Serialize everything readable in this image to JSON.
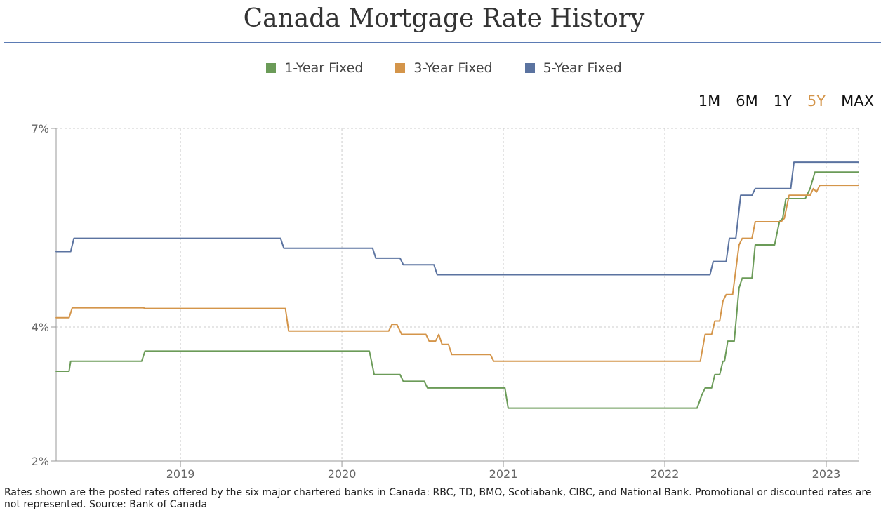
{
  "title": "Canada Mortgage Rate History",
  "range_selector": {
    "options": [
      "1M",
      "6M",
      "1Y",
      "5Y",
      "MAX"
    ],
    "active": "5Y"
  },
  "footnote": "Rates shown are the posted rates offered by the six major chartered banks in Canada: RBC, TD, BMO, Scotiabank, CIBC, and National Bank. Promotional or discounted rates are not represented. Source: Bank of Canada",
  "colors": {
    "one_year": "#6b9b58",
    "three_year": "#d4954a",
    "five_year": "#5b73a0",
    "grid": "#cccccc",
    "axis": "#999999"
  },
  "chart_data": {
    "type": "line",
    "title": "Canada Mortgage Rate History",
    "xlabel": "",
    "ylabel": "",
    "x_range": [
      2018.23,
      2023.2
    ],
    "ylim": [
      2,
      7
    ],
    "y_ticks": [
      2,
      4,
      7
    ],
    "y_tick_labels": [
      "2%",
      "4%",
      "7%"
    ],
    "x_ticks": [
      2019,
      2020,
      2021,
      2022,
      2023
    ],
    "x_tick_labels": [
      "2019",
      "2020",
      "2021",
      "2022",
      "2023"
    ],
    "grid": true,
    "legend": "top-center",
    "series": [
      {
        "name": "1-Year Fixed",
        "color": "#6b9b58",
        "points": [
          [
            2018.23,
            3.34
          ],
          [
            2018.31,
            3.34
          ],
          [
            2018.32,
            3.49
          ],
          [
            2018.76,
            3.49
          ],
          [
            2018.78,
            3.64
          ],
          [
            2020.17,
            3.64
          ],
          [
            2020.2,
            3.29
          ],
          [
            2020.36,
            3.29
          ],
          [
            2020.38,
            3.19
          ],
          [
            2020.51,
            3.19
          ],
          [
            2020.53,
            3.09
          ],
          [
            2021.01,
            3.09
          ],
          [
            2021.03,
            2.79
          ],
          [
            2022.2,
            2.79
          ],
          [
            2022.23,
            2.99
          ],
          [
            2022.25,
            3.09
          ],
          [
            2022.29,
            3.09
          ],
          [
            2022.31,
            3.29
          ],
          [
            2022.34,
            3.29
          ],
          [
            2022.36,
            3.49
          ],
          [
            2022.37,
            3.49
          ],
          [
            2022.39,
            3.79
          ],
          [
            2022.43,
            3.79
          ],
          [
            2022.46,
            4.59
          ],
          [
            2022.48,
            4.74
          ],
          [
            2022.54,
            4.74
          ],
          [
            2022.56,
            5.24
          ],
          [
            2022.68,
            5.24
          ],
          [
            2022.71,
            5.59
          ],
          [
            2022.73,
            5.64
          ],
          [
            2022.75,
            5.94
          ],
          [
            2022.87,
            5.94
          ],
          [
            2022.9,
            6.09
          ],
          [
            2022.93,
            6.34
          ],
          [
            2023.2,
            6.34
          ]
        ]
      },
      {
        "name": "3-Year Fixed",
        "color": "#d4954a",
        "points": [
          [
            2018.23,
            4.14
          ],
          [
            2018.31,
            4.14
          ],
          [
            2018.33,
            4.29
          ],
          [
            2018.77,
            4.29
          ],
          [
            2018.78,
            4.28
          ],
          [
            2019.65,
            4.28
          ],
          [
            2019.67,
            3.94
          ],
          [
            2020.29,
            3.94
          ],
          [
            2020.31,
            4.04
          ],
          [
            2020.34,
            4.04
          ],
          [
            2020.37,
            3.89
          ],
          [
            2020.52,
            3.89
          ],
          [
            2020.54,
            3.79
          ],
          [
            2020.58,
            3.79
          ],
          [
            2020.6,
            3.89
          ],
          [
            2020.62,
            3.74
          ],
          [
            2020.66,
            3.74
          ],
          [
            2020.68,
            3.59
          ],
          [
            2020.92,
            3.59
          ],
          [
            2020.94,
            3.49
          ],
          [
            2020.96,
            3.49
          ],
          [
            2022.22,
            3.49
          ],
          [
            2022.25,
            3.89
          ],
          [
            2022.29,
            3.89
          ],
          [
            2022.31,
            4.09
          ],
          [
            2022.34,
            4.09
          ],
          [
            2022.36,
            4.39
          ],
          [
            2022.38,
            4.49
          ],
          [
            2022.42,
            4.49
          ],
          [
            2022.46,
            5.24
          ],
          [
            2022.48,
            5.34
          ],
          [
            2022.54,
            5.34
          ],
          [
            2022.56,
            5.59
          ],
          [
            2022.72,
            5.59
          ],
          [
            2022.74,
            5.64
          ],
          [
            2022.77,
            5.99
          ],
          [
            2022.9,
            5.99
          ],
          [
            2022.92,
            6.09
          ],
          [
            2022.94,
            6.04
          ],
          [
            2022.96,
            6.14
          ],
          [
            2023.2,
            6.14
          ]
        ]
      },
      {
        "name": "5-Year Fixed",
        "color": "#5b73a0",
        "points": [
          [
            2018.23,
            5.14
          ],
          [
            2018.32,
            5.14
          ],
          [
            2018.34,
            5.34
          ],
          [
            2019.62,
            5.34
          ],
          [
            2019.64,
            5.19
          ],
          [
            2020.19,
            5.19
          ],
          [
            2020.21,
            5.04
          ],
          [
            2020.36,
            5.04
          ],
          [
            2020.38,
            4.94
          ],
          [
            2020.57,
            4.94
          ],
          [
            2020.59,
            4.79
          ],
          [
            2022.28,
            4.79
          ],
          [
            2022.3,
            4.99
          ],
          [
            2022.38,
            4.99
          ],
          [
            2022.4,
            5.34
          ],
          [
            2022.44,
            5.34
          ],
          [
            2022.47,
            5.99
          ],
          [
            2022.54,
            5.99
          ],
          [
            2022.56,
            6.09
          ],
          [
            2022.78,
            6.09
          ],
          [
            2022.8,
            6.49
          ],
          [
            2023.2,
            6.49
          ]
        ]
      }
    ]
  }
}
